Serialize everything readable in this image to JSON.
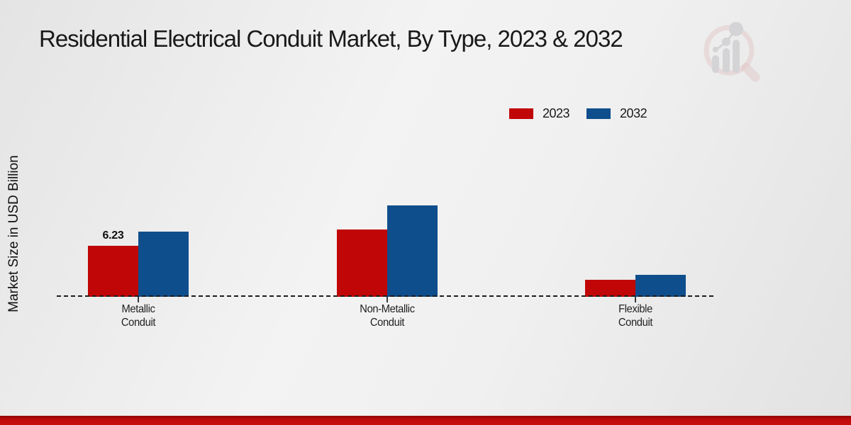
{
  "title": "Residential Electrical Conduit Market, By Type, 2023 & 2032",
  "y_axis_label": "Market Size in USD Billion",
  "legend": [
    {
      "label": "2023",
      "color": "#c00606"
    },
    {
      "label": "2032",
      "color": "#0f4e8c"
    }
  ],
  "colors": {
    "bar_2023": "#c00606",
    "bar_2032": "#0f4e8c",
    "bottom_accent_bar": "#c00606",
    "baseline": "#1c1c1c"
  },
  "chart_data": {
    "type": "bar",
    "title": "Residential Electrical Conduit Market, By Type, 2023 & 2032",
    "xlabel": "",
    "ylabel": "Market Size in USD Billion",
    "categories": [
      "Metallic Conduit",
      "Non-Metallic Conduit",
      "Flexible Conduit"
    ],
    "series": [
      {
        "name": "2023",
        "color": "#c00606",
        "values": [
          6.23,
          8.2,
          2.1
        ]
      },
      {
        "name": "2032",
        "color": "#0f4e8c",
        "values": [
          7.95,
          11.15,
          2.7
        ]
      }
    ],
    "data_labels": [
      [
        "6.23",
        null,
        null
      ],
      [
        null,
        null,
        null
      ]
    ],
    "baseline_value": 0,
    "grid": false,
    "axis_line_style": "dashed",
    "legend_position": "top-right"
  }
}
